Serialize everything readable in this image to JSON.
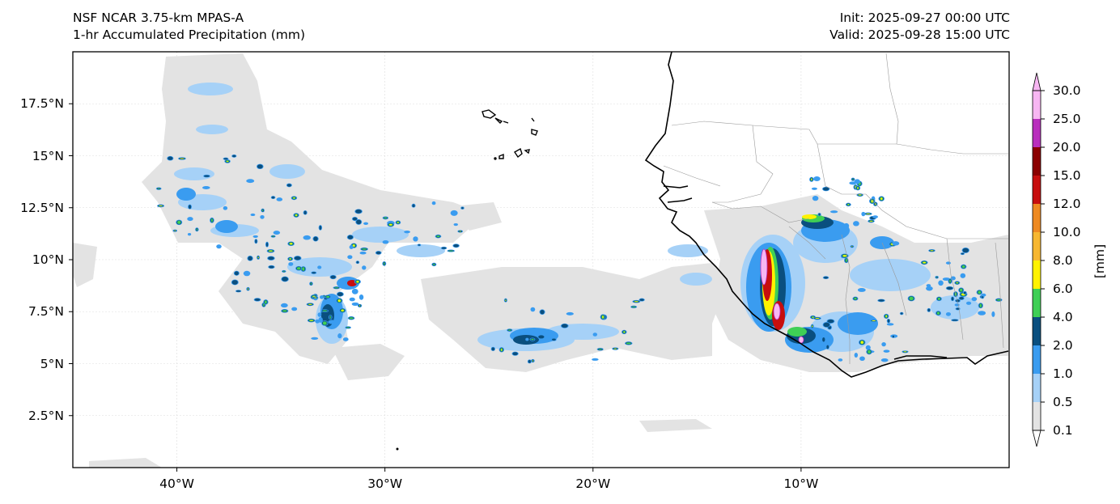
{
  "header": {
    "model": "NSF NCAR 3.75-km MPAS-A",
    "field": "1-hr Accumulated Precipitation (mm)",
    "init": "Init: 2025-09-27 00:00 UTC",
    "valid": "Valid: 2025-09-28 15:00 UTC"
  },
  "map": {
    "extent": {
      "lon_min": -45,
      "lon_max": 0,
      "lat_min": 0,
      "lat_max": 20
    },
    "lat_ticks": [
      {
        "value": 2.5,
        "label": "2.5°N"
      },
      {
        "value": 5,
        "label": "5°N"
      },
      {
        "value": 7.5,
        "label": "7.5°N"
      },
      {
        "value": 10,
        "label": "10°N"
      },
      {
        "value": 12.5,
        "label": "12.5°N"
      },
      {
        "value": 15,
        "label": "15°N"
      },
      {
        "value": 17.5,
        "label": "17.5°N"
      }
    ],
    "lon_ticks": [
      {
        "value": -40,
        "label": "40°W"
      },
      {
        "value": -30,
        "label": "30°W"
      },
      {
        "value": -20,
        "label": "20°W"
      },
      {
        "value": -10,
        "label": "10°W"
      }
    ]
  },
  "colorbar": {
    "unit": "[mm]",
    "levels": [
      "0.1",
      "0.5",
      "1.0",
      "2.0",
      "4.0",
      "6.0",
      "8.0",
      "10.0",
      "12.0",
      "15.0",
      "20.0",
      "25.0",
      "30.0"
    ],
    "colors": [
      "#e3e3e3",
      "#a6d1f7",
      "#3a9cf0",
      "#0a4f7f",
      "#3fcf55",
      "#fff200",
      "#f7b731",
      "#ee8a22",
      "#c70e0e",
      "#8b0000",
      "#b92ebd",
      "#f7b6f2"
    ]
  }
}
